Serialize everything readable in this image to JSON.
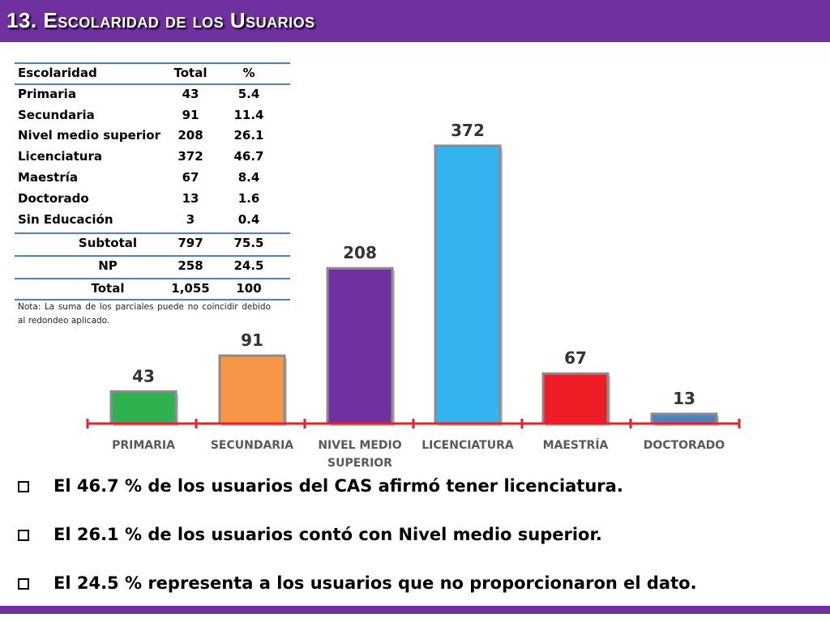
{
  "header": {
    "title": "13. Escolaridad de los Usuarios"
  },
  "table": {
    "headers": [
      "Escolaridad",
      "Total",
      "%"
    ],
    "rows": [
      [
        "Primaria",
        "43",
        "5.4"
      ],
      [
        "Secundaria",
        "91",
        "11.4"
      ],
      [
        "Nivel medio superior",
        "208",
        "26.1"
      ],
      [
        "Licenciatura",
        "372",
        "46.7"
      ],
      [
        "Maestría",
        "67",
        "8.4"
      ],
      [
        "Doctorado",
        "13",
        "1.6"
      ],
      [
        "Sin Educación",
        "3",
        "0.4"
      ]
    ],
    "subtotal": [
      "Subtotal",
      "797",
      "75.5"
    ],
    "np": [
      "NP",
      "258",
      "24.5"
    ],
    "total": [
      "Total",
      "1,055",
      "100"
    ],
    "note": "Nota: La suma de los parciales puede no coincidir debido al redondeo aplicado."
  },
  "chart_data": {
    "type": "bar",
    "categories": [
      "PRIMARIA",
      "SECUNDARIA",
      "NIVEL MEDIO SUPERIOR",
      "LICENCIATURA",
      "MAESTRÍA",
      "DOCTORADO"
    ],
    "category_lines": [
      [
        "PRIMARIA"
      ],
      [
        "SECUNDARIA"
      ],
      [
        "NIVEL MEDIO",
        "SUPERIOR"
      ],
      [
        "LICENCIATURA"
      ],
      [
        "MAESTRÍA"
      ],
      [
        "DOCTORADO"
      ]
    ],
    "values": [
      43,
      91,
      208,
      372,
      67,
      13
    ],
    "value_labels": [
      "43",
      "91",
      "208",
      "372",
      "67",
      "13"
    ],
    "colors": [
      "#2fb150",
      "#f79646",
      "#7030a0",
      "#33b4f0",
      "#ee1c24",
      "#4f81bd"
    ],
    "axis_color": "#e8202a",
    "ylim": [
      0,
      372
    ],
    "grid": false,
    "legend": "none"
  },
  "bullets": [
    "El 46.7 % de los usuarios del CAS afirmó tener licenciatura.",
    "El 26.1 % de los usuarios contó con Nivel medio superior.",
    "El  24.5 % representa a los usuarios que no proporcionaron el dato."
  ],
  "theme": {
    "accent": "#7030a0",
    "rule": "#4f81bd"
  }
}
